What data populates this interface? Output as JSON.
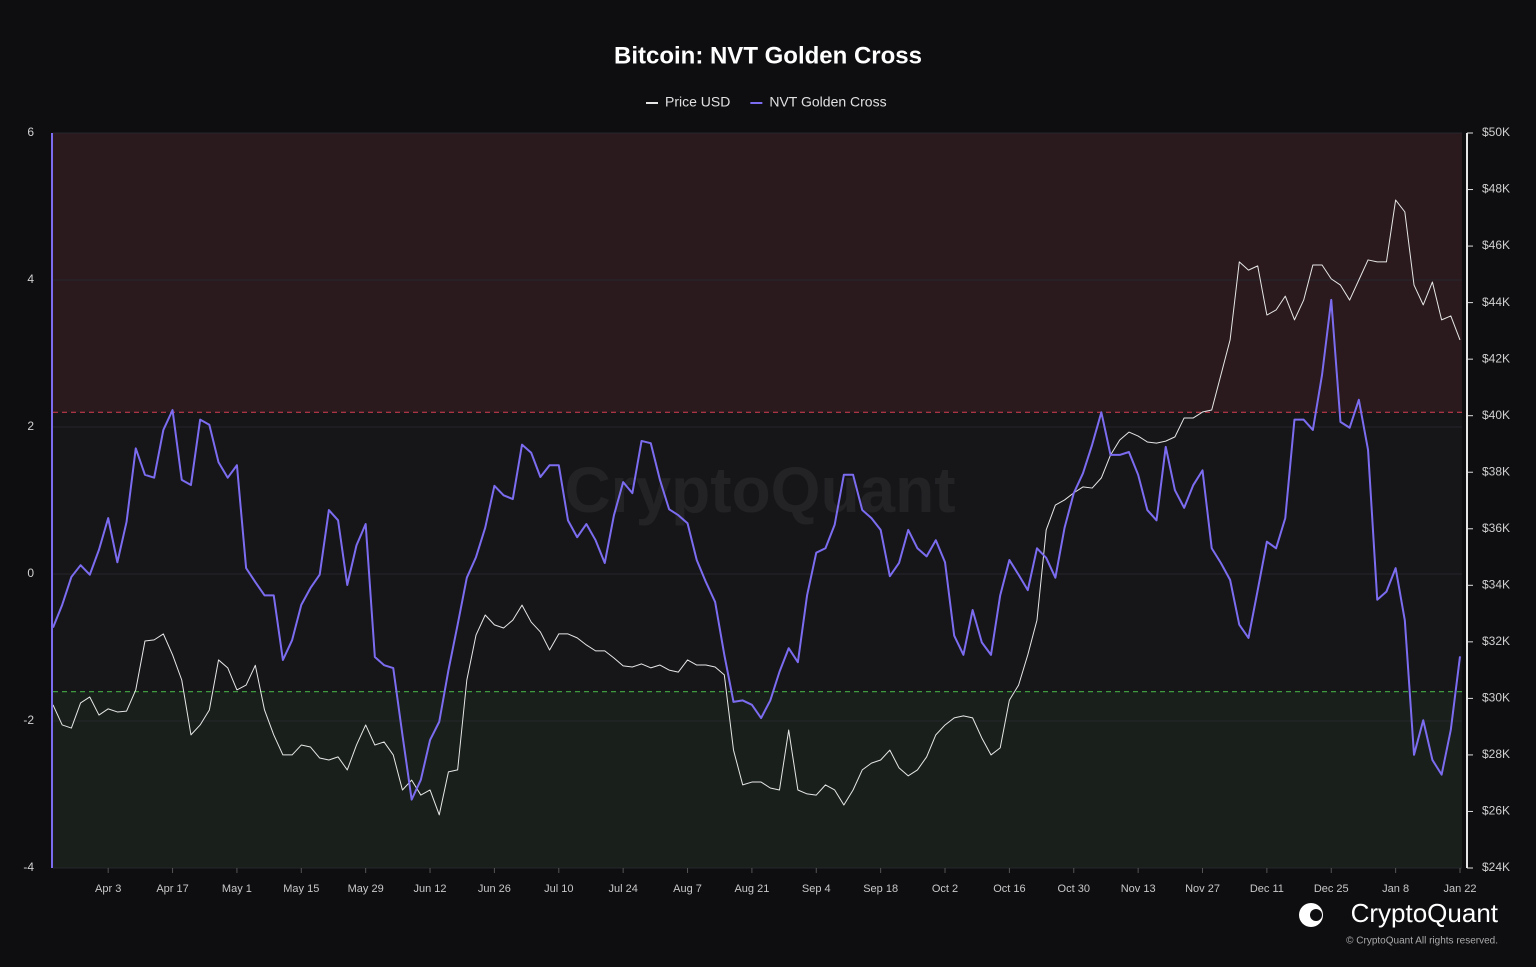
{
  "chart_data": {
    "type": "line",
    "title": "Bitcoin: NVT Golden Cross",
    "watermark": "CryptoQuant",
    "brand": "CryptoQuant",
    "copyright": "© CryptoQuant All rights reserved.",
    "categories": [
      null,
      null,
      null,
      null,
      null,
      null,
      "Apr 3",
      null,
      null,
      null,
      null,
      null,
      null,
      "Apr 17",
      null,
      null,
      null,
      null,
      null,
      null,
      "May 1",
      null,
      null,
      null,
      null,
      null,
      null,
      "May 15",
      null,
      null,
      null,
      null,
      null,
      null,
      "May 29",
      null,
      null,
      null,
      null,
      null,
      null,
      "Jun 12",
      null,
      null,
      null,
      null,
      null,
      null,
      "Jun 26",
      null,
      null,
      null,
      null,
      null,
      null,
      "Jul 10",
      null,
      null,
      null,
      null,
      null,
      null,
      "Jul 24",
      null,
      null,
      null,
      null,
      null,
      null,
      "Aug 7",
      null,
      null,
      null,
      null,
      null,
      null,
      "Aug 21",
      null,
      null,
      null,
      null,
      null,
      null,
      "Sep 4",
      null,
      null,
      null,
      null,
      null,
      null,
      "Sep 18",
      null,
      null,
      null,
      null,
      null,
      null,
      "Oct 2",
      null,
      null,
      null,
      null,
      null,
      null,
      "Oct 16",
      null,
      null,
      null,
      null,
      null,
      null,
      "Oct 30",
      null,
      null,
      null,
      null,
      null,
      null,
      "Nov 13",
      null,
      null,
      null,
      null,
      null,
      null,
      "Nov 27",
      null,
      null,
      null,
      null,
      null,
      null,
      "Dec 11",
      null,
      null,
      null,
      null,
      null,
      null,
      "Dec 25",
      null,
      null,
      null,
      null,
      null,
      null,
      "Jan 8",
      null,
      null,
      null,
      null,
      null,
      null,
      "Jan 22"
    ],
    "series": [
      {
        "name": "Price USD",
        "color": "#e6e6e6",
        "axis": "y2",
        "values": [
          29770,
          29060,
          28950,
          29840,
          30050,
          29410,
          29630,
          29520,
          29550,
          30300,
          32030,
          32070,
          32280,
          31540,
          30650,
          28710,
          29060,
          29590,
          31360,
          31080,
          30300,
          30470,
          31170,
          29590,
          28710,
          28000,
          28000,
          28350,
          28280,
          27890,
          27820,
          27930,
          27470,
          28350,
          29060,
          28350,
          28460,
          28000,
          26760,
          27110,
          26580,
          26760,
          25880,
          27400,
          27470,
          30650,
          32240,
          32950,
          32600,
          32490,
          32770,
          33300,
          32700,
          32350,
          31710,
          32280,
          32280,
          32140,
          31890,
          31680,
          31680,
          31430,
          31150,
          31110,
          31220,
          31080,
          31180,
          31000,
          30930,
          31360,
          31180,
          31180,
          31110,
          30830,
          28170,
          26940,
          27040,
          27040,
          26830,
          26760,
          28880,
          26760,
          26620,
          26580,
          26940,
          26760,
          26230,
          26760,
          27470,
          27710,
          27820,
          28170,
          27540,
          27260,
          27470,
          27930,
          28710,
          29060,
          29310,
          29380,
          29310,
          28600,
          28000,
          28250,
          29940,
          30470,
          31540,
          32770,
          35960,
          36840,
          37020,
          37270,
          37480,
          37440,
          37800,
          38610,
          39140,
          39420,
          39280,
          39070,
          39030,
          39100,
          39250,
          39920,
          39920,
          40130,
          40200,
          41440,
          42680,
          45440,
          45150,
          45300,
          43560,
          43740,
          44230,
          43390,
          44090,
          45330,
          45330,
          44840,
          44620,
          44090,
          44800,
          45510,
          45440,
          45440,
          47630,
          47210,
          44620,
          43920,
          44730,
          43390,
          43530,
          42680
        ]
      },
      {
        "name": "NVT Golden Cross",
        "color": "#7b6cf0",
        "values": [
          -0.73,
          -0.42,
          -0.04,
          0.12,
          -0.01,
          0.33,
          0.76,
          0.16,
          0.71,
          1.71,
          1.35,
          1.31,
          1.96,
          2.23,
          1.28,
          1.21,
          2.1,
          2.03,
          1.52,
          1.31,
          1.48,
          0.08,
          -0.11,
          -0.29,
          -0.29,
          -1.17,
          -0.9,
          -0.42,
          -0.19,
          -0.01,
          0.87,
          0.73,
          -0.15,
          0.39,
          0.68,
          -1.13,
          -1.24,
          -1.28,
          -2.19,
          -3.07,
          -2.8,
          -2.26,
          -2.01,
          -1.31,
          -0.69,
          -0.05,
          0.23,
          0.63,
          1.2,
          1.07,
          1.02,
          1.76,
          1.65,
          1.32,
          1.48,
          1.48,
          0.73,
          0.5,
          0.68,
          0.46,
          0.15,
          0.8,
          1.25,
          1.1,
          1.81,
          1.78,
          1.28,
          0.88,
          0.8,
          0.69,
          0.19,
          -0.11,
          -0.38,
          -1.1,
          -1.74,
          -1.72,
          -1.78,
          -1.96,
          -1.72,
          -1.33,
          -1.01,
          -1.2,
          -0.29,
          0.29,
          0.35,
          0.67,
          1.35,
          1.35,
          0.87,
          0.76,
          0.6,
          -0.03,
          0.15,
          0.6,
          0.35,
          0.24,
          0.46,
          0.16,
          -0.84,
          -1.1,
          -0.49,
          -0.93,
          -1.1,
          -0.29,
          0.19,
          -0.01,
          -0.22,
          0.35,
          0.22,
          -0.05,
          0.63,
          1.1,
          1.37,
          1.76,
          2.2,
          1.62,
          1.62,
          1.66,
          1.35,
          0.87,
          0.73,
          1.73,
          1.14,
          0.9,
          1.21,
          1.41,
          0.35,
          0.15,
          -0.08,
          -0.69,
          -0.87,
          -0.22,
          0.44,
          0.35,
          0.76,
          2.1,
          2.1,
          1.96,
          2.71,
          3.73,
          2.07,
          1.99,
          2.37,
          1.69,
          -0.35,
          -0.24,
          0.08,
          -0.63,
          -2.46,
          -1.99,
          -2.53,
          -2.73,
          -2.12,
          -1.12
        ]
      }
    ],
    "ylim": [
      -4,
      6
    ],
    "yticks": [
      -4,
      -2,
      0,
      2,
      4,
      6
    ],
    "y2lim": [
      24000,
      50000
    ],
    "y2ticks": [
      {
        "value": 24000,
        "label": "$24K"
      },
      {
        "value": 26000,
        "label": "$26K"
      },
      {
        "value": 28000,
        "label": "$28K"
      },
      {
        "value": 30000,
        "label": "$30K"
      },
      {
        "value": 32000,
        "label": "$32K"
      },
      {
        "value": 34000,
        "label": "$34K"
      },
      {
        "value": 36000,
        "label": "$36K"
      },
      {
        "value": 38000,
        "label": "$38K"
      },
      {
        "value": 40000,
        "label": "$40K"
      },
      {
        "value": 42000,
        "label": "$42K"
      },
      {
        "value": 44000,
        "label": "$44K"
      },
      {
        "value": 46000,
        "label": "$46K"
      },
      {
        "value": 48000,
        "label": "$48K"
      },
      {
        "value": 50000,
        "label": "$50K"
      }
    ],
    "upper_threshold": 2.2,
    "upper_color": "#c0394a",
    "lower_threshold": -1.6,
    "lower_color": "#3f9a3f",
    "grid": true,
    "legend": "top"
  }
}
